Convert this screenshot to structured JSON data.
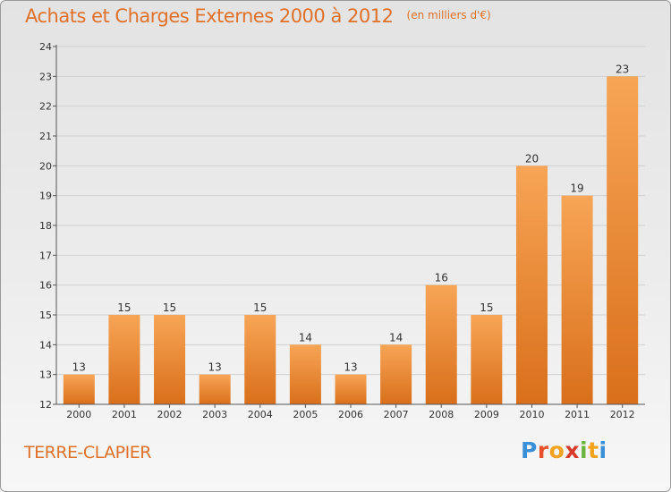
{
  "header": {
    "title": "Achats et Charges Externes 2000 à 2012",
    "subtitle": "(en milliers d'€)"
  },
  "footer": {
    "commune": "TERRE-CLAPIER",
    "logo_text": "Proxiti",
    "logo_letters": [
      {
        "char": "P",
        "color": "#3a8fd6"
      },
      {
        "char": "r",
        "color": "#e8502a"
      },
      {
        "char": "o",
        "color": "#f2a21c"
      },
      {
        "char": "x",
        "color": "#d93b2b"
      },
      {
        "char": "i",
        "color": "#6cb33f"
      },
      {
        "char": "t",
        "color": "#f2a21c"
      },
      {
        "char": "i",
        "color": "#3a8fd6"
      }
    ]
  },
  "chart_data": {
    "type": "bar",
    "title": "Achats et Charges Externes 2000 à 2012",
    "subtitle": "(en milliers d'€)",
    "categories": [
      "2000",
      "2001",
      "2002",
      "2003",
      "2004",
      "2005",
      "2006",
      "2007",
      "2008",
      "2009",
      "2010",
      "2011",
      "2012"
    ],
    "values": [
      13,
      15,
      15,
      13,
      15,
      14,
      13,
      14,
      16,
      15,
      20,
      19,
      23
    ],
    "ylim": [
      12,
      24
    ],
    "yticks": [
      12,
      13,
      14,
      15,
      16,
      17,
      18,
      19,
      20,
      21,
      22,
      23,
      24
    ],
    "grid": true,
    "bar_color_top": "#f7a556",
    "bar_color_bottom": "#d96f1a",
    "axis_color": "#555555",
    "grid_color": "#d0d0d0",
    "label_color": "#333333"
  }
}
